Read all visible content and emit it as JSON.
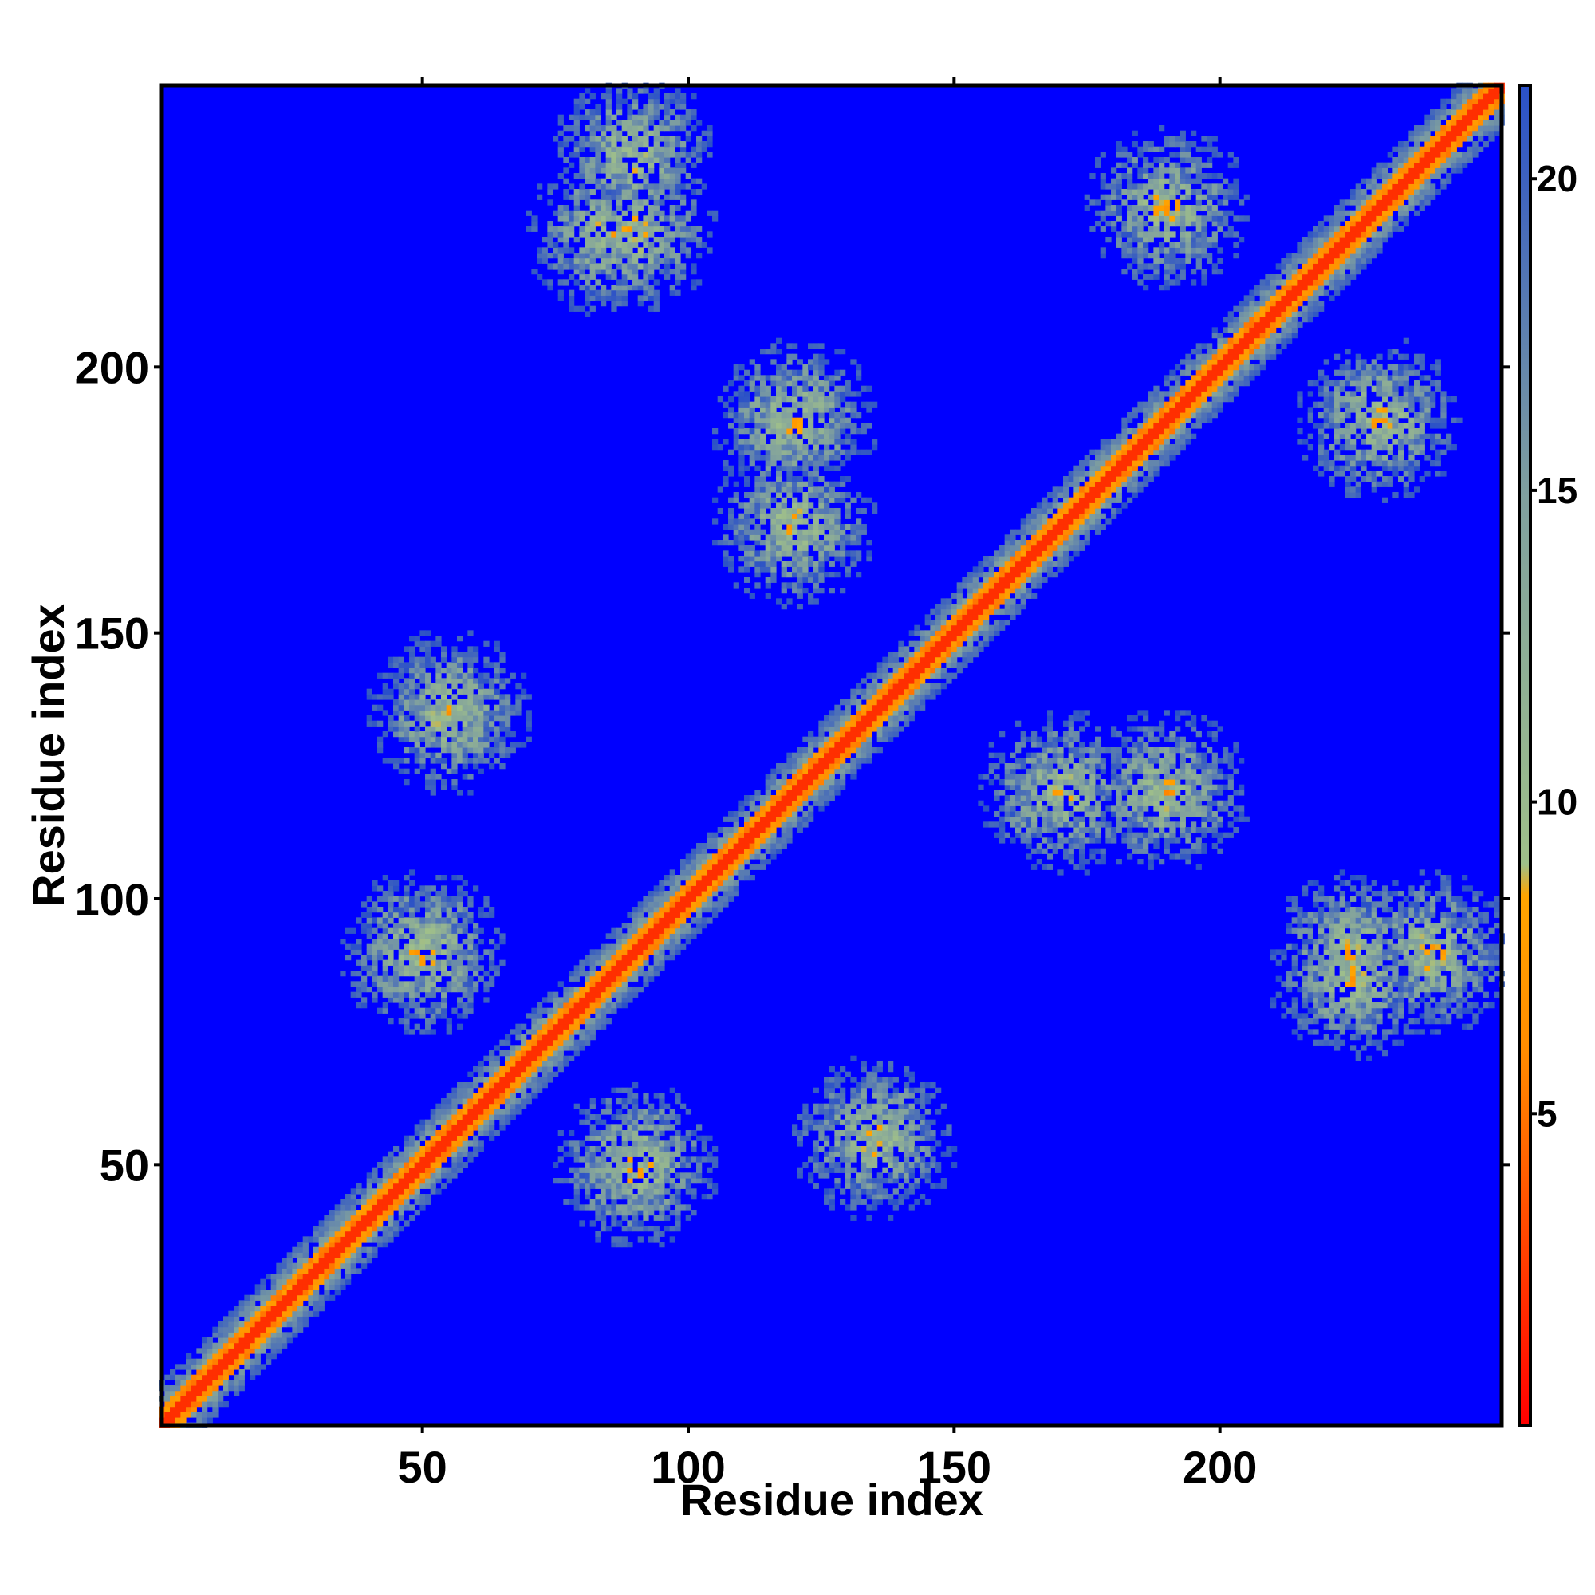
{
  "chart_data": {
    "type": "heatmap",
    "title": "",
    "xlabel": "Residue index",
    "ylabel": "Residue index",
    "xlim": [
      1,
      253
    ],
    "ylim": [
      1,
      253
    ],
    "n_residues": 253,
    "x_ticks": [
      50,
      100,
      150,
      200
    ],
    "y_ticks": [
      50,
      100,
      150,
      200
    ],
    "colorbar": {
      "range": [
        0,
        21.5
      ],
      "ticks": [
        5,
        10,
        15,
        20
      ],
      "colors": [
        {
          "at": 0,
          "color": "#ff0000"
        },
        {
          "at": 6,
          "color": "#ff8c00"
        },
        {
          "at": 8.5,
          "color": "#ffa500"
        },
        {
          "at": 9,
          "color": "#9fbf8a"
        },
        {
          "at": 15,
          "color": "#7f9f9f"
        },
        {
          "at": 21.5,
          "color": "#2a50c8"
        }
      ],
      "cutoff_color": "#0000ff"
    },
    "diagonal": "symmetric contact map with strong band along the diagonal",
    "contact_clusters": [
      {
        "i": 55,
        "j": 135,
        "strength": 0.8
      },
      {
        "i": 135,
        "j": 55,
        "strength": 0.8
      },
      {
        "i": 50,
        "j": 90,
        "strength": 0.9
      },
      {
        "i": 90,
        "j": 50,
        "strength": 0.9
      },
      {
        "i": 120,
        "j": 190,
        "strength": 0.8
      },
      {
        "i": 190,
        "j": 120,
        "strength": 0.8
      },
      {
        "i": 170,
        "j": 120,
        "strength": 0.8
      },
      {
        "i": 120,
        "j": 170,
        "strength": 0.8
      },
      {
        "i": 90,
        "j": 240,
        "strength": 0.8
      },
      {
        "i": 240,
        "j": 90,
        "strength": 0.8
      },
      {
        "i": 90,
        "j": 225,
        "strength": 0.75
      },
      {
        "i": 225,
        "j": 90,
        "strength": 0.75
      },
      {
        "i": 190,
        "j": 230,
        "strength": 0.8
      },
      {
        "i": 230,
        "j": 190,
        "strength": 0.8
      },
      {
        "i": 85,
        "j": 225,
        "strength": 0.7
      },
      {
        "i": 225,
        "j": 85,
        "strength": 0.7
      }
    ]
  }
}
